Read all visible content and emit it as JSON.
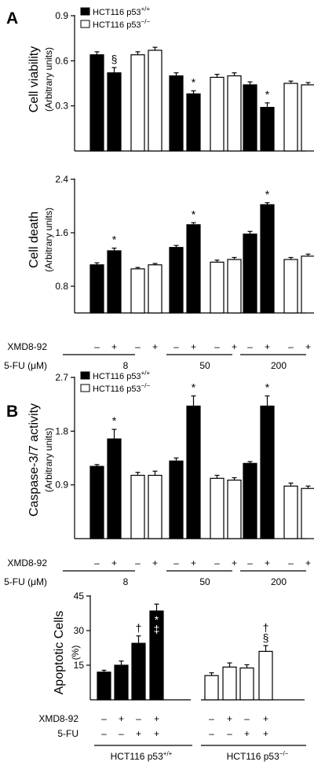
{
  "panel_labels": [
    "A",
    "B"
  ],
  "legend": {
    "wt": "HCT116 p53",
    "wt_sup": "+/+",
    "ko": "HCT116 p53",
    "ko_sup": "−/−"
  },
  "row_labels": {
    "xmd": "XMD8-92",
    "fu_um": "5-FU (μM)",
    "fu": "5-FU"
  },
  "signs": {
    "minus": "–",
    "plus": "+"
  },
  "doses": [
    "8",
    "50",
    "200"
  ],
  "group_labels": {
    "wt": "HCT116 p53",
    "wt_sup": "+/+",
    "ko": "HCT116 p53",
    "ko_sup": "−/−"
  },
  "colors": {
    "wt": "#000000",
    "ko": "#ffffff",
    "axis": "#000000"
  },
  "chart_data": [
    {
      "type": "bar",
      "ylabel": "Cell viability",
      "ylabel_sub": "(Arbitrary units)",
      "ylim": [
        0,
        0.9
      ],
      "yticks": [
        "0.9",
        "0.6",
        "0.3"
      ],
      "yticks_values": [
        0.9,
        0.6,
        0.3
      ],
      "show_legend": true,
      "show_doses": false,
      "categories": [
        "8",
        "50",
        "200"
      ],
      "series": [
        {
          "key": "wt",
          "xmd": "–",
          "values": [
            0.64,
            0.5,
            0.44
          ],
          "errors": [
            0.02,
            0.02,
            0.02
          ],
          "marks": [
            "",
            "",
            ""
          ]
        },
        {
          "key": "wt",
          "xmd": "+",
          "values": [
            0.52,
            0.38,
            0.29
          ],
          "errors": [
            0.035,
            0.02,
            0.03
          ],
          "marks": [
            "§",
            "*",
            "*"
          ]
        },
        {
          "key": "ko",
          "xmd": "–",
          "values": [
            0.64,
            0.49,
            0.45
          ],
          "errors": [
            0.02,
            0.02,
            0.015
          ],
          "marks": [
            "",
            "",
            ""
          ]
        },
        {
          "key": "ko",
          "xmd": "+",
          "values": [
            0.67,
            0.5,
            0.44
          ],
          "errors": [
            0.02,
            0.02,
            0.015
          ],
          "marks": [
            "",
            "",
            ""
          ]
        }
      ]
    },
    {
      "type": "bar",
      "ylabel": "Cell death",
      "ylabel_sub": "(Arbitrary units)",
      "ylim": [
        0,
        2.4
      ],
      "yticks": [
        "2.4",
        "1.6",
        "0.8"
      ],
      "yticks_values": [
        2.4,
        1.6,
        0.8
      ],
      "show_legend": false,
      "show_doses": true,
      "categories": [
        "8",
        "50",
        "200"
      ],
      "series": [
        {
          "key": "wt",
          "xmd": "–",
          "values": [
            1.12,
            1.38,
            1.58
          ],
          "errors": [
            0.03,
            0.03,
            0.04
          ],
          "marks": [
            "",
            "",
            ""
          ]
        },
        {
          "key": "wt",
          "xmd": "+",
          "values": [
            1.33,
            1.72,
            2.02
          ],
          "errors": [
            0.04,
            0.03,
            0.03
          ],
          "marks": [
            "*",
            "*",
            "*"
          ]
        },
        {
          "key": "ko",
          "xmd": "–",
          "values": [
            1.06,
            1.16,
            1.2
          ],
          "errors": [
            0.02,
            0.03,
            0.03
          ],
          "marks": [
            "",
            "",
            ""
          ]
        },
        {
          "key": "ko",
          "xmd": "+",
          "values": [
            1.12,
            1.2,
            1.25
          ],
          "errors": [
            0.02,
            0.03,
            0.03
          ],
          "marks": [
            "",
            "",
            ""
          ]
        }
      ]
    },
    {
      "type": "bar",
      "ylabel": "Caspase-3/7 activity",
      "ylabel_sub": "(Arbitrary units)",
      "ylim": [
        0,
        2.7
      ],
      "yticks": [
        "2.7",
        "1.8",
        "0.9"
      ],
      "yticks_values": [
        2.7,
        1.8,
        0.9
      ],
      "show_legend": true,
      "show_doses": true,
      "categories": [
        "8",
        "50",
        "200"
      ],
      "series": [
        {
          "key": "wt",
          "xmd": "–",
          "values": [
            1.21,
            1.3,
            1.26
          ],
          "errors": [
            0.03,
            0.05,
            0.03
          ],
          "marks": [
            "",
            "",
            ""
          ]
        },
        {
          "key": "wt",
          "xmd": "+",
          "values": [
            1.67,
            2.22,
            2.22
          ],
          "errors": [
            0.16,
            0.17,
            0.17
          ],
          "marks": [
            "*",
            "*",
            "*"
          ]
        },
        {
          "key": "ko",
          "xmd": "–",
          "values": [
            1.06,
            1.01,
            0.88
          ],
          "errors": [
            0.05,
            0.05,
            0.05
          ],
          "marks": [
            "",
            "",
            ""
          ]
        },
        {
          "key": "ko",
          "xmd": "+",
          "values": [
            1.06,
            0.98,
            0.84
          ],
          "errors": [
            0.07,
            0.04,
            0.04
          ],
          "marks": [
            "",
            "",
            ""
          ]
        }
      ]
    },
    {
      "type": "bar",
      "ylabel": "Apoptotic Cells",
      "ylabel_sub": "(%)",
      "ylim": [
        0,
        45
      ],
      "yticks": [
        "45",
        "30",
        "15"
      ],
      "yticks_values": [
        45,
        30,
        15
      ],
      "groups": [
        {
          "key": "wt",
          "xmd": [
            "–",
            "+",
            "–",
            "+"
          ],
          "fu": [
            "–",
            "–",
            "+",
            "+"
          ],
          "values": [
            12.0,
            15.0,
            24.5,
            38.5
          ],
          "errors": [
            0.8,
            1.8,
            3.2,
            3.0
          ],
          "marks": [
            [],
            [],
            [
              "†"
            ],
            [
              "*",
              "‡"
            ]
          ]
        },
        {
          "key": "ko",
          "xmd": [
            "–",
            "+",
            "–",
            "+"
          ],
          "fu": [
            "–",
            "–",
            "+",
            "+"
          ],
          "values": [
            10.5,
            14.2,
            13.8,
            21.0
          ],
          "errors": [
            1.2,
            1.8,
            1.4,
            2.5
          ],
          "marks": [
            [],
            [],
            [],
            [
              "†",
              "§"
            ]
          ]
        }
      ]
    }
  ]
}
